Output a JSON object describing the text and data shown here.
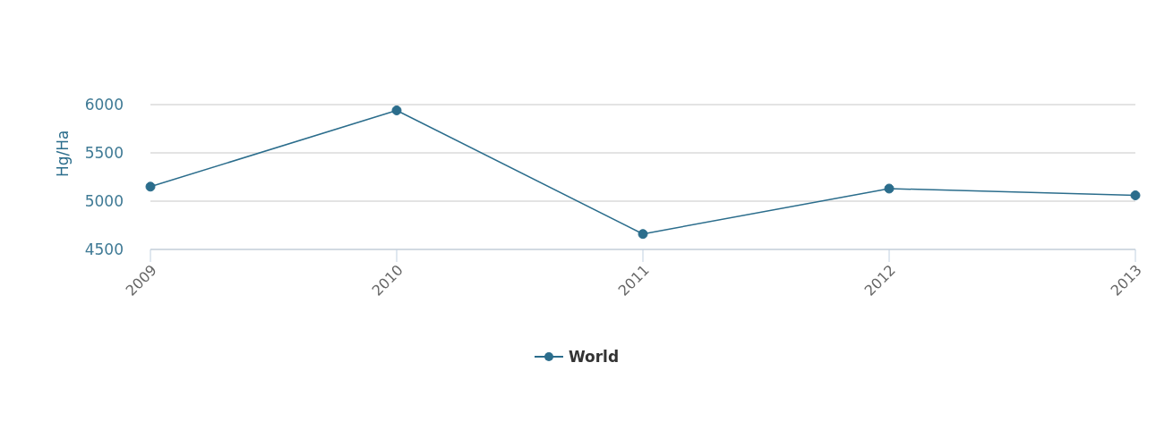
{
  "chart_data": {
    "type": "line",
    "ylabel": "Hg/Ha",
    "categories": [
      "2009",
      "2010",
      "2011",
      "2012",
      "2013"
    ],
    "series": [
      {
        "name": "World",
        "color": "#2b6d8c",
        "values": [
          5150,
          5940,
          4660,
          5130,
          5060
        ]
      }
    ],
    "ylim": [
      4500,
      6000
    ],
    "yticks": [
      4500,
      5000,
      5500,
      6000
    ],
    "grid": "y",
    "legend": "bottom",
    "marker": "circle",
    "line_style": "solid"
  }
}
